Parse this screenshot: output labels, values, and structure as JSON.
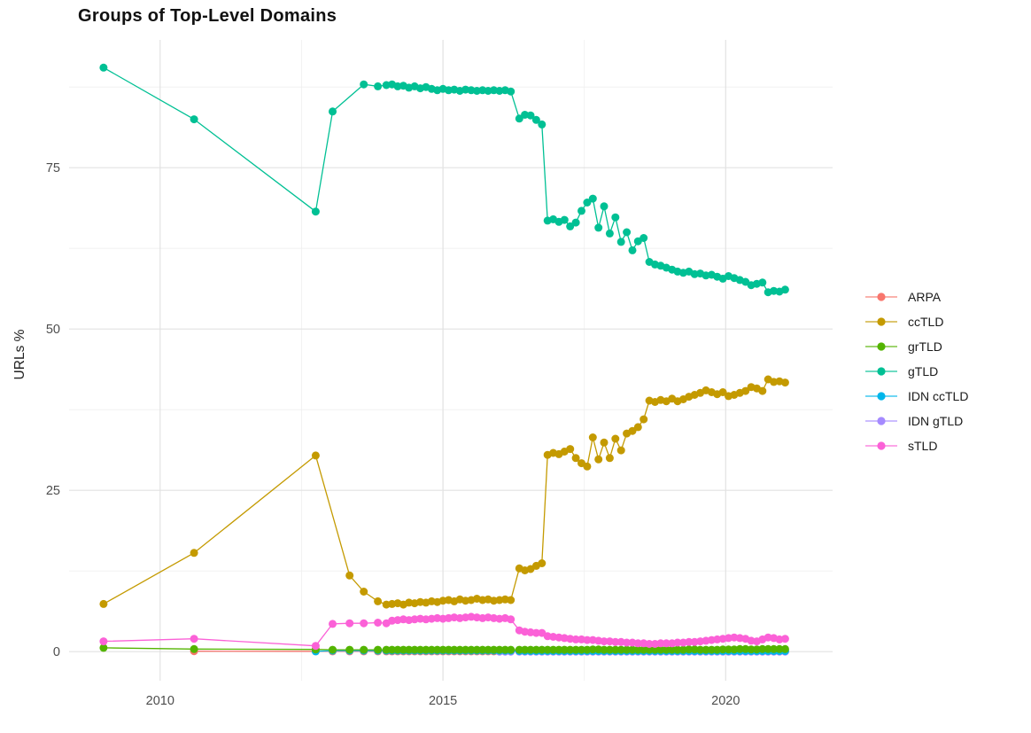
{
  "chart_data": {
    "type": "line",
    "title": "Groups of Top-Level Domains",
    "xlabel": "",
    "ylabel": "URLs %",
    "marker": "point+line",
    "grid": "on",
    "legend_position": "right",
    "x_ticks": [
      2010,
      2015,
      2020
    ],
    "x_minor_ticks": [
      2012.5,
      2017.5
    ],
    "y_ticks": [
      0,
      25,
      50,
      75
    ],
    "y_minor_ticks": [
      12.5,
      37.5,
      62.5,
      87.5
    ],
    "x_range": [
      2008.39,
      2021.89
    ],
    "y_range": [
      -4.5,
      94.8
    ],
    "x": [
      2009.0,
      2010.6,
      2012.75,
      2013.05,
      2013.35,
      2013.6,
      2013.85,
      2014.0,
      2014.1,
      2014.2,
      2014.3,
      2014.4,
      2014.5,
      2014.6,
      2014.7,
      2014.8,
      2014.9,
      2015.0,
      2015.1,
      2015.2,
      2015.3,
      2015.4,
      2015.5,
      2015.6,
      2015.7,
      2015.8,
      2015.9,
      2016.0,
      2016.1,
      2016.2,
      2016.35,
      2016.45,
      2016.55,
      2016.65,
      2016.75,
      2016.85,
      2016.95,
      2017.05,
      2017.15,
      2017.25,
      2017.35,
      2017.45,
      2017.55,
      2017.65,
      2017.75,
      2017.85,
      2017.95,
      2018.05,
      2018.15,
      2018.25,
      2018.35,
      2018.45,
      2018.55,
      2018.65,
      2018.75,
      2018.85,
      2018.95,
      2019.05,
      2019.15,
      2019.25,
      2019.35,
      2019.45,
      2019.55,
      2019.65,
      2019.75,
      2019.85,
      2019.95,
      2020.05,
      2020.15,
      2020.25,
      2020.35,
      2020.45,
      2020.55,
      2020.65,
      2020.75,
      2020.85,
      2020.95,
      2021.05
    ],
    "series": [
      {
        "name": "ARPA",
        "color": "#F8766D",
        "values": [
          null,
          0.08,
          0.06,
          0.05,
          0.05,
          0.05,
          0.05,
          0.05,
          0.05,
          0.05,
          0.05,
          0.05,
          0.05,
          0.05,
          0.05,
          0.05,
          0.05,
          0.05,
          0.05,
          0.05,
          0.05,
          0.05,
          0.05,
          0.05,
          0.05,
          0.05,
          0.05,
          0.05,
          0.05,
          0.05,
          0.05,
          0.05,
          0.05,
          0.05,
          0.05,
          0.05,
          0.05,
          0.05,
          0.05,
          0.05,
          0.05,
          0.05,
          0.05,
          0.05,
          0.05,
          0.05,
          0.05,
          0.05,
          0.05,
          0.05,
          0.05,
          0.05,
          0.05,
          0.05,
          0.05,
          0.05,
          0.05,
          0.05,
          0.05,
          0.05,
          0.05,
          0.05,
          0.05,
          0.05,
          0.05,
          0.05,
          0.05,
          0.05,
          0.05,
          0.05,
          0.05,
          0.05,
          0.05,
          0.05,
          0.05,
          0.05,
          0.05,
          0.05
        ]
      },
      {
        "name": "ccTLD",
        "color": "#C49A00",
        "values": [
          7.4,
          15.3,
          30.4,
          null,
          11.8,
          9.3,
          7.8,
          7.3,
          7.4,
          7.5,
          7.3,
          7.6,
          7.5,
          7.7,
          7.6,
          7.8,
          7.7,
          7.9,
          8.0,
          7.8,
          8.1,
          7.9,
          8.0,
          8.2,
          8.0,
          8.1,
          7.9,
          8.0,
          8.1,
          8.0,
          12.9,
          12.6,
          12.8,
          13.3,
          13.7,
          30.5,
          30.8,
          30.6,
          31.0,
          31.4,
          30.0,
          29.2,
          28.7,
          33.2,
          29.8,
          32.4,
          30.0,
          33.0,
          31.2,
          33.8,
          34.2,
          34.8,
          36.0,
          38.9,
          38.7,
          39.0,
          38.8,
          39.2,
          38.8,
          39.1,
          39.5,
          39.8,
          40.1,
          40.5,
          40.2,
          39.9,
          40.2,
          39.6,
          39.8,
          40.1,
          40.4,
          41.0,
          40.8,
          40.4,
          42.2,
          41.8,
          41.9,
          41.7
        ]
      },
      {
        "name": "grTLD",
        "color": "#53B400",
        "values": [
          0.6,
          0.4,
          0.35,
          0.3,
          0.3,
          0.3,
          0.3,
          0.3,
          0.3,
          0.3,
          0.3,
          0.3,
          0.3,
          0.3,
          0.3,
          0.3,
          0.3,
          0.3,
          0.3,
          0.3,
          0.3,
          0.3,
          0.3,
          0.3,
          0.3,
          0.3,
          0.3,
          0.3,
          0.3,
          0.3,
          0.3,
          0.3,
          0.3,
          0.3,
          0.3,
          0.3,
          0.3,
          0.3,
          0.3,
          0.3,
          0.3,
          0.3,
          0.3,
          0.35,
          0.35,
          0.3,
          0.3,
          0.3,
          0.3,
          0.3,
          0.3,
          0.3,
          0.3,
          0.3,
          0.3,
          0.3,
          0.3,
          0.3,
          0.3,
          0.3,
          0.35,
          0.35,
          0.3,
          0.3,
          0.3,
          0.3,
          0.35,
          0.35,
          0.35,
          0.4,
          0.4,
          0.35,
          0.35,
          0.4,
          0.4,
          0.4,
          0.4,
          0.4
        ]
      },
      {
        "name": "gTLD",
        "color": "#00C094",
        "values": [
          90.5,
          82.5,
          68.2,
          83.7,
          null,
          87.9,
          87.6,
          87.8,
          87.9,
          87.6,
          87.7,
          87.4,
          87.6,
          87.3,
          87.5,
          87.2,
          87.0,
          87.2,
          87.0,
          87.1,
          86.9,
          87.1,
          87.0,
          86.9,
          87.0,
          86.9,
          87.0,
          86.9,
          87.0,
          86.8,
          82.6,
          83.2,
          83.1,
          82.4,
          81.7,
          66.8,
          67.0,
          66.6,
          66.9,
          65.9,
          66.5,
          68.3,
          69.6,
          70.2,
          65.7,
          69.0,
          64.8,
          67.3,
          63.5,
          65.0,
          62.2,
          63.6,
          64.1,
          60.4,
          60.0,
          59.8,
          59.5,
          59.2,
          58.9,
          58.7,
          58.9,
          58.5,
          58.6,
          58.3,
          58.4,
          58.1,
          57.8,
          58.2,
          57.9,
          57.6,
          57.3,
          56.8,
          57.0,
          57.2,
          55.7,
          55.9,
          55.8,
          56.1
        ]
      },
      {
        "name": "IDN ccTLD",
        "color": "#00B6EB",
        "values": [
          null,
          null,
          0.05,
          0.15,
          0.15,
          0.15,
          0.15,
          0.15,
          0.15,
          0.15,
          0.15,
          0.15,
          0.15,
          0.15,
          0.15,
          0.15,
          0.15,
          0.15,
          0.15,
          0.15,
          0.15,
          0.15,
          0.15,
          0.15,
          0.15,
          0.15,
          0.15,
          0.15,
          0.15,
          0.15,
          0.1,
          0.1,
          0.1,
          0.1,
          0.1,
          0.1,
          0.1,
          0.1,
          0.1,
          0.1,
          0.1,
          0.1,
          0.1,
          0.1,
          0.1,
          0.1,
          0.1,
          0.1,
          0.1,
          0.1,
          0.1,
          0.1,
          0.1,
          0.1,
          0.1,
          0.1,
          0.1,
          0.1,
          0.1,
          0.1,
          0.1,
          0.1,
          0.1,
          0.1,
          0.1,
          0.1,
          0.1,
          0.1,
          0.1,
          0.1,
          0.1,
          0.1,
          0.1,
          0.1,
          0.1,
          0.1,
          0.1,
          0.1
        ]
      },
      {
        "name": "IDN gTLD",
        "color": "#A58AFF",
        "values": [
          null,
          null,
          null,
          null,
          null,
          null,
          null,
          null,
          null,
          null,
          null,
          null,
          null,
          null,
          null,
          null,
          null,
          null,
          null,
          null,
          null,
          null,
          null,
          null,
          null,
          null,
          null,
          0.0,
          0.0,
          0.0,
          0.0,
          0.0,
          0.0,
          0.0,
          0.0,
          0.0,
          0.0,
          0.0,
          0.0,
          0.0,
          0.0,
          0.0,
          0.0,
          0.0,
          0.0,
          0.0,
          0.0,
          0.0,
          0.0,
          0.0,
          0.0,
          0.0,
          0.0,
          0.0,
          0.0,
          0.0,
          0.0,
          0.0,
          0.0,
          0.0,
          0.0,
          0.0,
          0.0,
          0.0,
          0.0,
          0.0,
          0.0,
          0.0,
          0.0,
          0.0,
          0.0,
          0.0,
          0.0,
          0.0,
          0.0,
          0.0,
          0.0,
          0.0
        ]
      },
      {
        "name": "sTLD",
        "color": "#FB61D7",
        "values": [
          1.6,
          2.0,
          0.9,
          4.3,
          4.4,
          4.4,
          4.5,
          4.4,
          4.8,
          4.9,
          5.0,
          4.9,
          5.0,
          5.1,
          5.0,
          5.1,
          5.2,
          5.1,
          5.2,
          5.3,
          5.2,
          5.3,
          5.4,
          5.3,
          5.2,
          5.3,
          5.2,
          5.1,
          5.2,
          5.0,
          3.3,
          3.1,
          3.0,
          2.9,
          2.9,
          2.4,
          2.3,
          2.2,
          2.1,
          2.0,
          1.9,
          1.9,
          1.8,
          1.8,
          1.7,
          1.6,
          1.6,
          1.5,
          1.5,
          1.4,
          1.4,
          1.3,
          1.3,
          1.2,
          1.2,
          1.3,
          1.3,
          1.3,
          1.4,
          1.4,
          1.5,
          1.5,
          1.6,
          1.7,
          1.8,
          1.9,
          2.0,
          2.1,
          2.2,
          2.1,
          2.0,
          1.7,
          1.6,
          1.9,
          2.2,
          2.1,
          1.9,
          2.0
        ]
      }
    ],
    "draw_order": [
      "ARPA",
      "IDN gTLD",
      "IDN ccTLD",
      "grTLD",
      "gTLD",
      "ccTLD",
      "sTLD"
    ],
    "colors": {
      "ARPA": "#F8766D",
      "ccTLD": "#C49A00",
      "grTLD": "#53B400",
      "gTLD": "#00C094",
      "IDN ccTLD": "#00B6EB",
      "IDN gTLD": "#A58AFF",
      "sTLD": "#FB61D7",
      "grid_major": "#E2E2E2",
      "grid_minor": "#EFEFEF",
      "tick_text": "#4d4d4d"
    }
  }
}
